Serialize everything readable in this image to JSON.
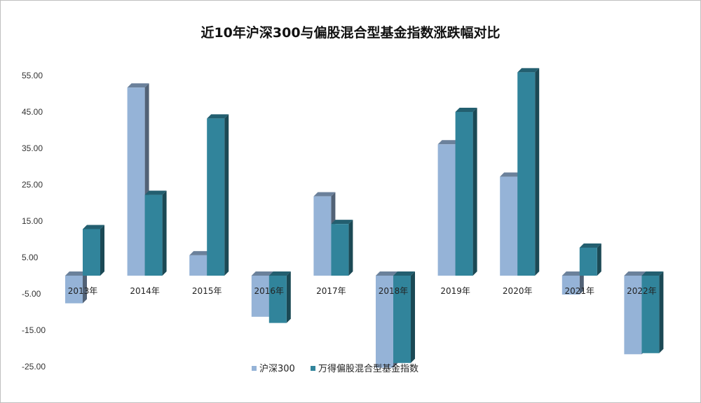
{
  "chart_data": {
    "type": "bar",
    "title": "近10年沪深300与偏股混合型基金指数涨跌幅对比",
    "categories": [
      "2013年",
      "2014年",
      "2015年",
      "2016年",
      "2017年",
      "2018年",
      "2019年",
      "2020年",
      "2021年",
      "2022年"
    ],
    "series": [
      {
        "name": "沪深300",
        "color": "#95b3d7",
        "values": [
          -7.6,
          51.7,
          5.6,
          -11.3,
          21.8,
          -25.3,
          36.1,
          27.2,
          -5.2,
          -21.6
        ]
      },
      {
        "name": "万得偏股混合型基金指数",
        "color": "#31849b",
        "values": [
          12.8,
          22.2,
          43.2,
          -13.0,
          14.2,
          -24.0,
          45.0,
          55.9,
          7.7,
          -21.3
        ]
      }
    ],
    "ylim": [
      -25,
      55
    ],
    "yticks": [
      "55.00",
      "45.00",
      "35.00",
      "25.00",
      "15.00",
      "5.00",
      "-5.00",
      "-15.00",
      "-25.00"
    ],
    "ytick_values": [
      55,
      45,
      35,
      25,
      15,
      5,
      -5,
      -15,
      -25
    ],
    "xlabel": "",
    "ylabel": "",
    "legend": "bottom",
    "grid": false
  }
}
